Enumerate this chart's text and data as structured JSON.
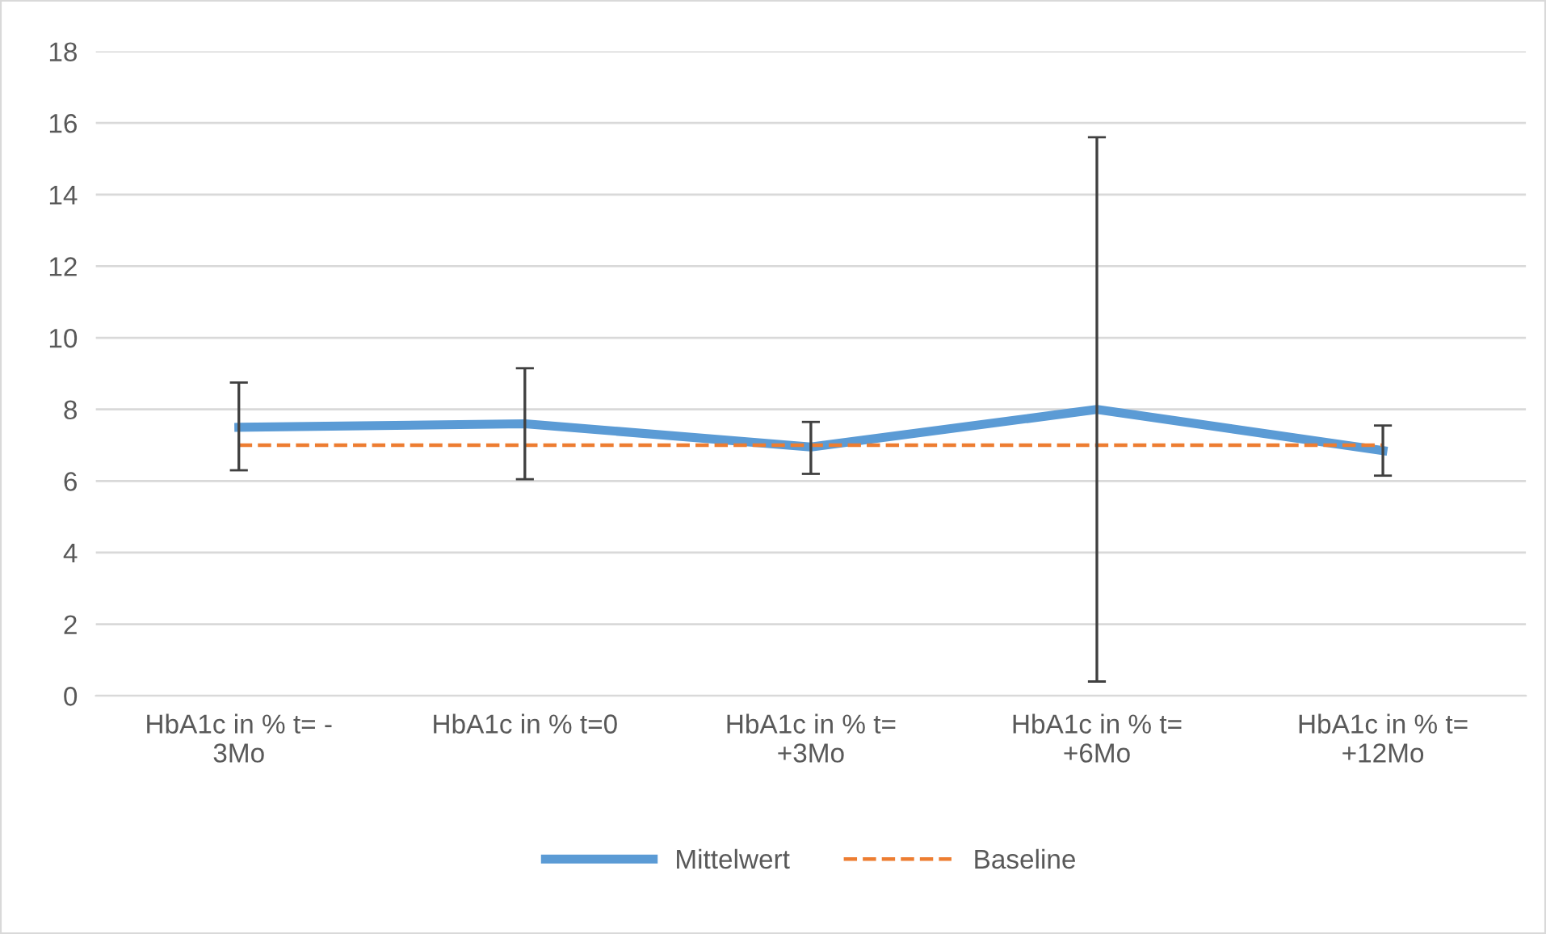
{
  "chart_data": {
    "type": "line",
    "categories": [
      "HbA1c in % t= - 3Mo",
      "HbA1c in % t=0",
      "HbA1c in % t= +3Mo",
      "HbA1c in % t= +6Mo",
      "HbA1c in % t= +12Mo"
    ],
    "series": [
      {
        "name": "Mittelwert",
        "color": "#5b9bd5",
        "values": [
          7.5,
          7.6,
          6.95,
          8.0,
          6.85
        ],
        "errors": [
          [
            6.3,
            8.75
          ],
          [
            6.05,
            9.15
          ],
          [
            6.2,
            7.65
          ],
          [
            0.4,
            15.6
          ],
          [
            6.15,
            7.55
          ]
        ],
        "line_style": "solid"
      },
      {
        "name": "Baseline",
        "color": "#ed7d31",
        "values": [
          7,
          7,
          7,
          7,
          7
        ],
        "line_style": "dashed"
      }
    ],
    "ylim": [
      0,
      18
    ],
    "yticks": [
      0,
      2,
      4,
      6,
      8,
      10,
      12,
      14,
      16,
      18
    ],
    "grid": "y",
    "legend": "bottom",
    "marker": "none"
  }
}
